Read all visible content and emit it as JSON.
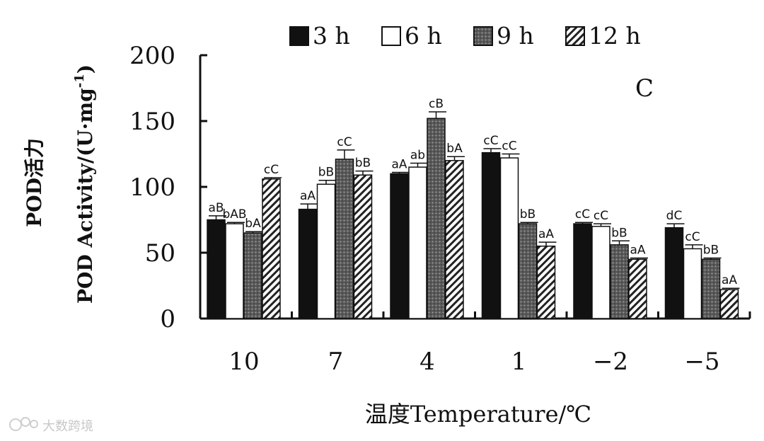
{
  "chart_data": {
    "type": "bar",
    "panel_label": "C",
    "ylabel_cn": "POD活力",
    "ylabel_en": "POD Activity/(U·mg",
    "ylabel_sup": "-1",
    "ylabel_close": ")",
    "xlabel": "温度Temperature/℃",
    "ylim": [
      0,
      200
    ],
    "yticks": [
      0,
      50,
      100,
      150,
      200
    ],
    "categories": [
      "10",
      "7",
      "4",
      "1",
      "−2",
      "−5"
    ],
    "series": [
      {
        "name": "3 h",
        "values": [
          75,
          83,
          110,
          126,
          72,
          69
        ],
        "errors": [
          3,
          4,
          1,
          3,
          1,
          3
        ],
        "labels": [
          "aB",
          "aA",
          "aA",
          "cC",
          "cC",
          "dC"
        ]
      },
      {
        "name": "6 h",
        "values": [
          72,
          102,
          115,
          122,
          70,
          53
        ],
        "errors": [
          1,
          3,
          3,
          3,
          2,
          3
        ],
        "labels": [
          "bAB",
          "bB",
          "ab",
          "cC",
          "cC",
          "cC"
        ]
      },
      {
        "name": "9 h",
        "values": [
          65,
          121,
          152,
          72,
          56,
          45
        ],
        "errors": [
          1,
          7,
          5,
          1,
          3,
          1
        ],
        "labels": [
          "bA",
          "cC",
          "cB",
          "bB",
          "bB",
          "bB"
        ]
      },
      {
        "name": "12 h",
        "values": [
          106,
          109,
          120,
          55,
          45,
          22
        ],
        "errors": [
          1,
          3,
          3,
          3,
          1,
          1
        ],
        "labels": [
          "cC",
          "bB",
          "bA",
          "aA",
          "aA",
          "aA"
        ]
      }
    ],
    "grid": false,
    "legend_position": "top"
  },
  "colors": {
    "s3h": "#111111",
    "s6h": "#ffffff",
    "s9h": "#555555",
    "s12h_hatch": "#222222",
    "axis": "#111111"
  },
  "watermark": "大数跨境"
}
